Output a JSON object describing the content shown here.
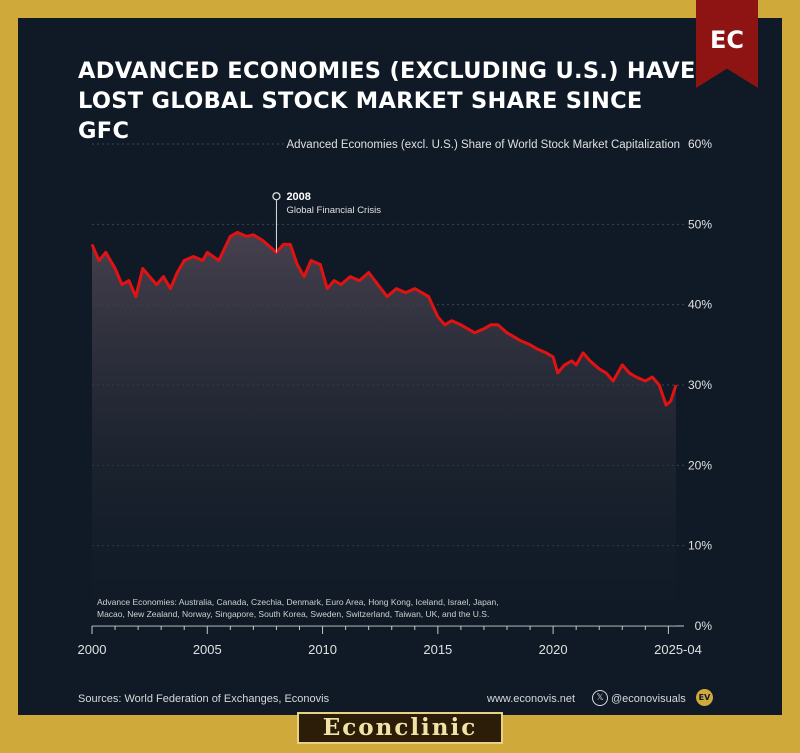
{
  "title": "ADVANCED ECONOMIES (EXCLUDING U.S.) HAVE LOST GLOBAL STOCK MARKET SHARE SINCE GFC",
  "logo_text": "EC",
  "sources": "Sources: World Federation of Exchanges, Econovis",
  "website": "www.econovis.net",
  "social_handle": "@econovisuals",
  "social_icon": "x-icon",
  "ev_badge": "EV",
  "brand_text": "Econclinic",
  "colors": {
    "background": "#0f1a26",
    "frame": "#cfa93a",
    "line": "#e31212",
    "ribbon": "#8e1414"
  },
  "chart_data": {
    "type": "line",
    "title": "Advanced Economies (excl. U.S.) Share of World Stock Market Capitalization",
    "xlabel": "",
    "ylabel": "",
    "xlim": [
      2000,
      2025.33
    ],
    "ylim": [
      0,
      60
    ],
    "x_ticks": [
      2000,
      2005,
      2010,
      2015,
      2020
    ],
    "x_tick_labels": [
      "2000",
      "2005",
      "2010",
      "2015",
      "2020"
    ],
    "x_end_label": "2025-04",
    "y_ticks": [
      0,
      10,
      20,
      30,
      40,
      50,
      60
    ],
    "y_tick_labels": [
      "0%",
      "10%",
      "20%",
      "30%",
      "40%",
      "50%",
      "60%"
    ],
    "grid": true,
    "note": "Advance Economies: Australia, Canada, Czechia, Denmark, Euro Area, Hong Kong, Iceland, Israel, Japan, Macao, New Zealand, Norway, Singapore, South Korea, Sweden, Switzerland, Taiwan, UK, and the U.S.",
    "annotation": {
      "x": 2008,
      "y": 53.5,
      "label": "2008",
      "sublabel": "Global Financial Crisis"
    },
    "series": [
      {
        "name": "",
        "x": [
          2000,
          2000.3,
          2000.6,
          2001,
          2001.3,
          2001.6,
          2001.9,
          2002.2,
          2002.5,
          2002.8,
          2003.1,
          2003.4,
          2003.7,
          2004,
          2004.4,
          2004.8,
          2005,
          2005.5,
          2006,
          2006.3,
          2006.7,
          2007,
          2007.4,
          2007.8,
          2008,
          2008.3,
          2008.6,
          2008.9,
          2009.2,
          2009.5,
          2009.9,
          2010.2,
          2010.5,
          2010.8,
          2011.2,
          2011.6,
          2012,
          2012.4,
          2012.8,
          2013.2,
          2013.6,
          2014,
          2014.3,
          2014.6,
          2015,
          2015.3,
          2015.6,
          2016,
          2016.3,
          2016.6,
          2017,
          2017.3,
          2017.6,
          2018,
          2018.3,
          2018.6,
          2019,
          2019.3,
          2019.7,
          2020,
          2020.2,
          2020.5,
          2020.8,
          2021,
          2021.3,
          2021.6,
          2022,
          2022.3,
          2022.6,
          2023,
          2023.3,
          2023.6,
          2024,
          2024.3,
          2024.6,
          2024.9,
          2025.1,
          2025.33
        ],
        "y": [
          47.5,
          45.5,
          46.5,
          44.5,
          42.5,
          43,
          41,
          44.5,
          43.5,
          42.5,
          43.5,
          42,
          44,
          45.5,
          46,
          45.5,
          46.5,
          45.5,
          48.5,
          49,
          48.5,
          48.7,
          48,
          47,
          46.5,
          47.5,
          47.5,
          45,
          43.5,
          45.5,
          45,
          42,
          43,
          42.5,
          43.5,
          43,
          44,
          42.5,
          41,
          42,
          41.5,
          42,
          41.5,
          41,
          38.5,
          37.5,
          38,
          37.5,
          37,
          36.5,
          37,
          37.5,
          37.5,
          36.5,
          36,
          35.5,
          35,
          34.5,
          34,
          33.5,
          31.5,
          32.5,
          33,
          32.5,
          34,
          33,
          32,
          31.5,
          30.5,
          32.5,
          31.5,
          31,
          30.5,
          31,
          30,
          27.5,
          28,
          30
        ]
      }
    ]
  }
}
